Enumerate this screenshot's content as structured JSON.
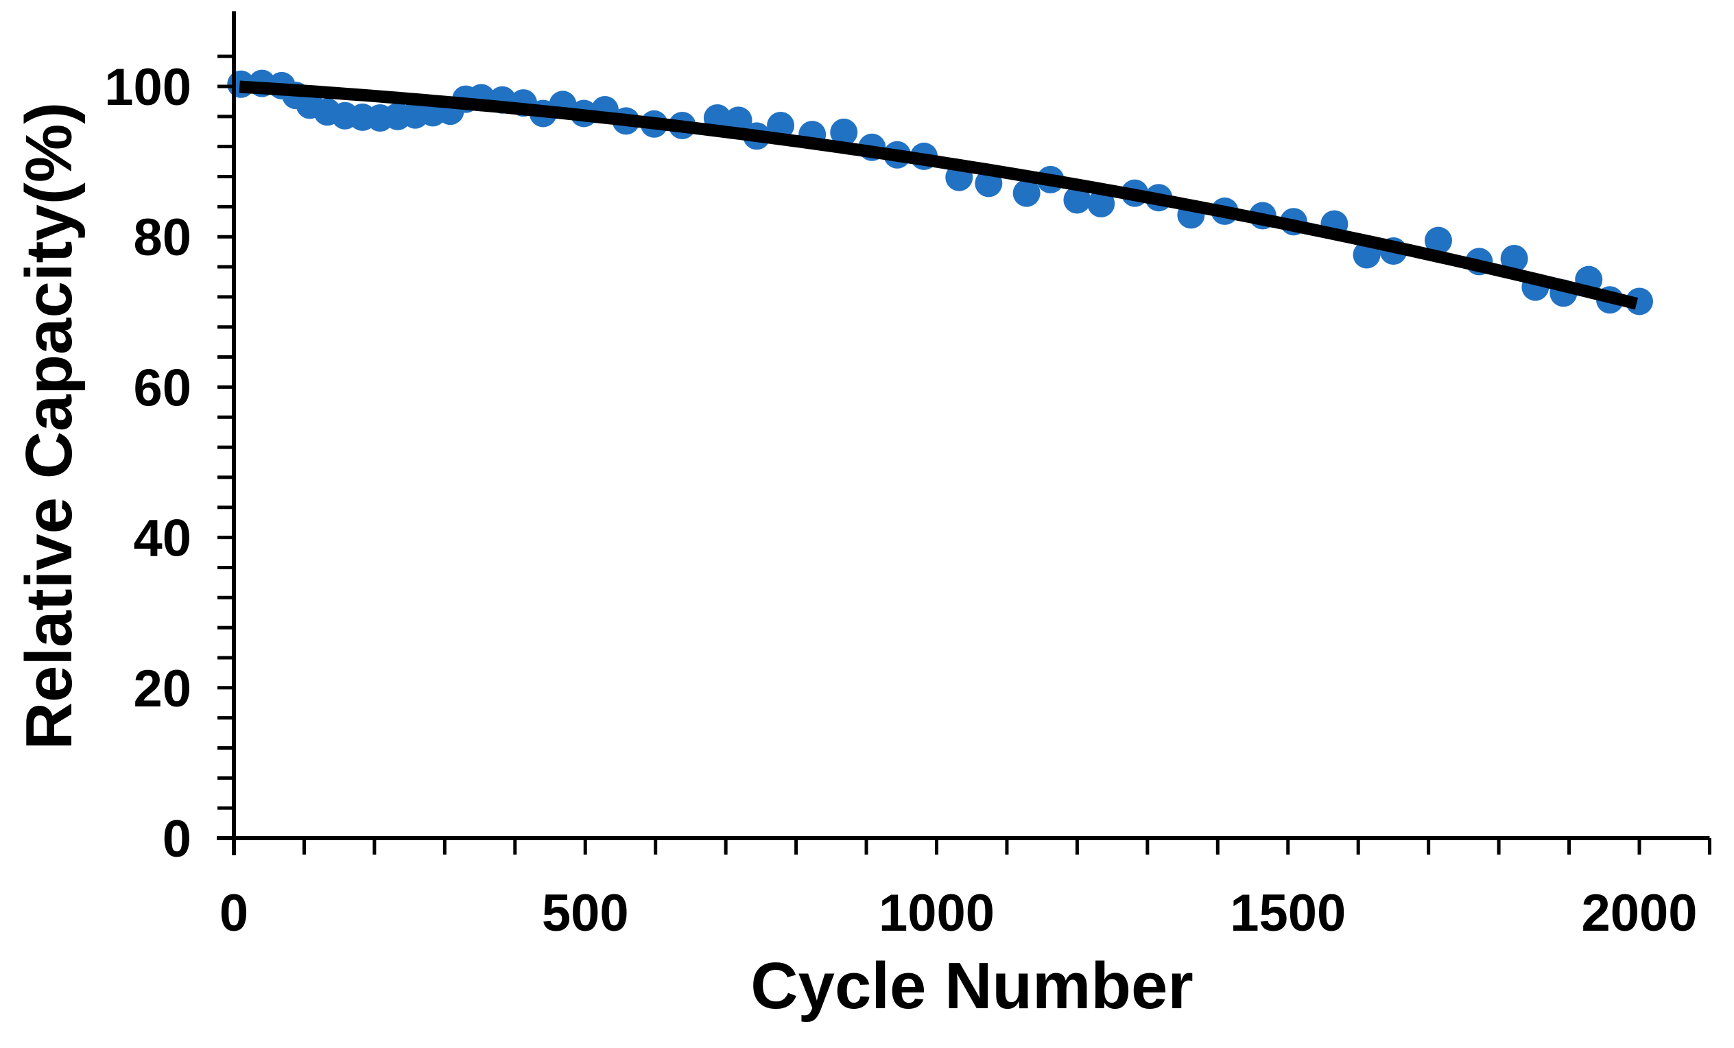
{
  "chart_data": {
    "type": "scatter",
    "title": "",
    "xlabel": "Cycle Number",
    "ylabel": "Relative Capacity(%)",
    "xlim": [
      0,
      2100
    ],
    "ylim": [
      0,
      110
    ],
    "x_major_ticks": [
      0,
      500,
      1000,
      1500,
      2000
    ],
    "x_minor_unit": 100,
    "y_major_ticks": [
      0,
      20,
      40,
      60,
      80,
      100
    ],
    "y_minor_unit": 4,
    "grid": false,
    "legend": "none",
    "colors": {
      "points": "#2272C4",
      "trend": "#000000",
      "axis": "#000000",
      "background": "#FFFFFF"
    },
    "series": [
      {
        "name": "relative-capacity-points",
        "type": "scatter",
        "color": "#2272C4",
        "marker_radius_px": 20,
        "points": [
          [
            10,
            100.3
          ],
          [
            40,
            100.4
          ],
          [
            68,
            100.1
          ],
          [
            88,
            98.8
          ],
          [
            108,
            97.5
          ],
          [
            133,
            96.6
          ],
          [
            158,
            96.1
          ],
          [
            183,
            95.9
          ],
          [
            208,
            95.8
          ],
          [
            233,
            96.0
          ],
          [
            258,
            96.2
          ],
          [
            283,
            96.5
          ],
          [
            308,
            96.7
          ],
          [
            330,
            98.3
          ],
          [
            352,
            98.5
          ],
          [
            382,
            98.2
          ],
          [
            412,
            97.8
          ],
          [
            440,
            96.4
          ],
          [
            468,
            97.6
          ],
          [
            498,
            96.4
          ],
          [
            528,
            96.9
          ],
          [
            558,
            95.4
          ],
          [
            598,
            95.0
          ],
          [
            638,
            94.8
          ],
          [
            688,
            95.8
          ],
          [
            718,
            95.5
          ],
          [
            744,
            93.4
          ],
          [
            778,
            94.8
          ],
          [
            823,
            93.6
          ],
          [
            868,
            93.9
          ],
          [
            908,
            91.9
          ],
          [
            944,
            90.9
          ],
          [
            982,
            90.7
          ],
          [
            1032,
            87.9
          ],
          [
            1074,
            87.1
          ],
          [
            1128,
            85.8
          ],
          [
            1162,
            87.6
          ],
          [
            1200,
            84.9
          ],
          [
            1234,
            84.4
          ],
          [
            1282,
            85.8
          ],
          [
            1316,
            85.2
          ],
          [
            1362,
            82.9
          ],
          [
            1410,
            83.4
          ],
          [
            1464,
            82.8
          ],
          [
            1508,
            82.0
          ],
          [
            1566,
            81.7
          ],
          [
            1612,
            77.6
          ],
          [
            1650,
            78.1
          ],
          [
            1714,
            79.5
          ],
          [
            1772,
            76.7
          ],
          [
            1822,
            77.1
          ],
          [
            1852,
            73.3
          ],
          [
            1892,
            72.5
          ],
          [
            1928,
            74.3
          ],
          [
            1958,
            71.6
          ],
          [
            2000,
            71.4
          ]
        ]
      },
      {
        "name": "trend-line",
        "type": "line",
        "color": "#000000",
        "stroke_width_px": 18,
        "fit": {
          "intercept": 100.0,
          "slope": -0.0055,
          "quad": -4.5e-06
        },
        "x_range": [
          8,
          2004
        ],
        "endpoints_note": "starts ~100% at cycle 0, ends ~71% at cycle 2000"
      }
    ]
  }
}
